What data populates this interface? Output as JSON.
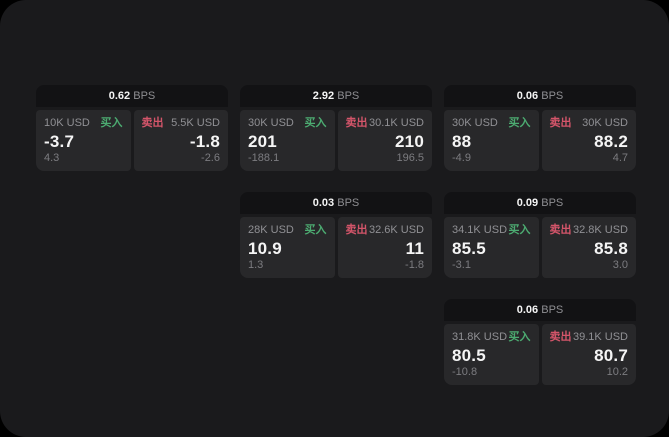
{
  "labels": {
    "bps_suffix": "BPS",
    "buy": "买入",
    "sell": "卖出"
  },
  "colors": {
    "background": "#000000",
    "window": "#1a1a1c",
    "card_header": "#121214",
    "panel": "#28282a",
    "text_primary": "#f5f5f5",
    "text_secondary": "#909094",
    "buy_green": "#4cab71",
    "sell_red": "#d4556a"
  },
  "cards": [
    {
      "bps": "0.62",
      "buy": {
        "size": "10K USD",
        "price": "-3.7",
        "change": "4.3"
      },
      "sell": {
        "size": "5.5K USD",
        "price": "-1.8",
        "change": "-2.6"
      }
    },
    {
      "bps": "2.92",
      "buy": {
        "size": "30K USD",
        "price": "201",
        "change": "-188.1"
      },
      "sell": {
        "size": "30.1K USD",
        "price": "210",
        "change": "196.5"
      }
    },
    {
      "bps": "0.06",
      "buy": {
        "size": "30K USD",
        "price": "88",
        "change": "-4.9"
      },
      "sell": {
        "size": "30K USD",
        "price": "88.2",
        "change": "4.7"
      }
    },
    {
      "bps": "0.03",
      "buy": {
        "size": "28K USD",
        "price": "10.9",
        "change": "1.3"
      },
      "sell": {
        "size": "32.6K USD",
        "price": "11",
        "change": "-1.8"
      }
    },
    {
      "bps": "0.09",
      "buy": {
        "size": "34.1K USD",
        "price": "85.5",
        "change": "-3.1"
      },
      "sell": {
        "size": "32.8K USD",
        "price": "85.8",
        "change": "3.0"
      }
    },
    {
      "bps": "0.06",
      "buy": {
        "size": "31.8K USD",
        "price": "80.5",
        "change": "-10.8"
      },
      "sell": {
        "size": "39.1K USD",
        "price": "80.7",
        "change": "10.2"
      }
    }
  ]
}
